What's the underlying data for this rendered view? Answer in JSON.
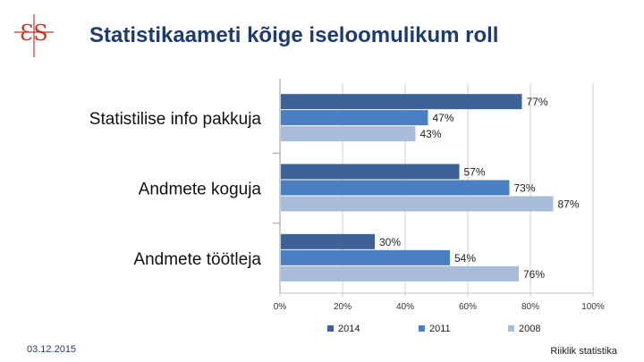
{
  "slide": {
    "title": "Statistikaameti kõige iseloomulikum roll",
    "date": "03.12.2015",
    "footer": "Riiklik statistika",
    "logo_icon": "es-logo-icon",
    "logo_color": "#c0392b"
  },
  "chart_data": {
    "type": "bar",
    "orientation": "horizontal",
    "categories": [
      "Statistilise info pakkuja",
      "Andmete koguja",
      "Andmete töötleja"
    ],
    "series": [
      {
        "name": "2014",
        "values": [
          77,
          57,
          30
        ],
        "labels": [
          "77%",
          "57%",
          "30%"
        ],
        "color": "#3d6296"
      },
      {
        "name": "2011",
        "values": [
          47,
          73,
          54
        ],
        "labels": [
          "47%",
          "73%",
          "54%"
        ],
        "color": "#4a7fc1"
      },
      {
        "name": "2008",
        "values": [
          43,
          87,
          76
        ],
        "labels": [
          "43%",
          "87%",
          "76%"
        ],
        "color": "#a9bcda"
      }
    ],
    "xlim": [
      0,
      100
    ],
    "xticks": [
      "0%",
      "20%",
      "40%",
      "60%",
      "80%",
      "100%"
    ],
    "grid": true,
    "legend": "bottom"
  }
}
